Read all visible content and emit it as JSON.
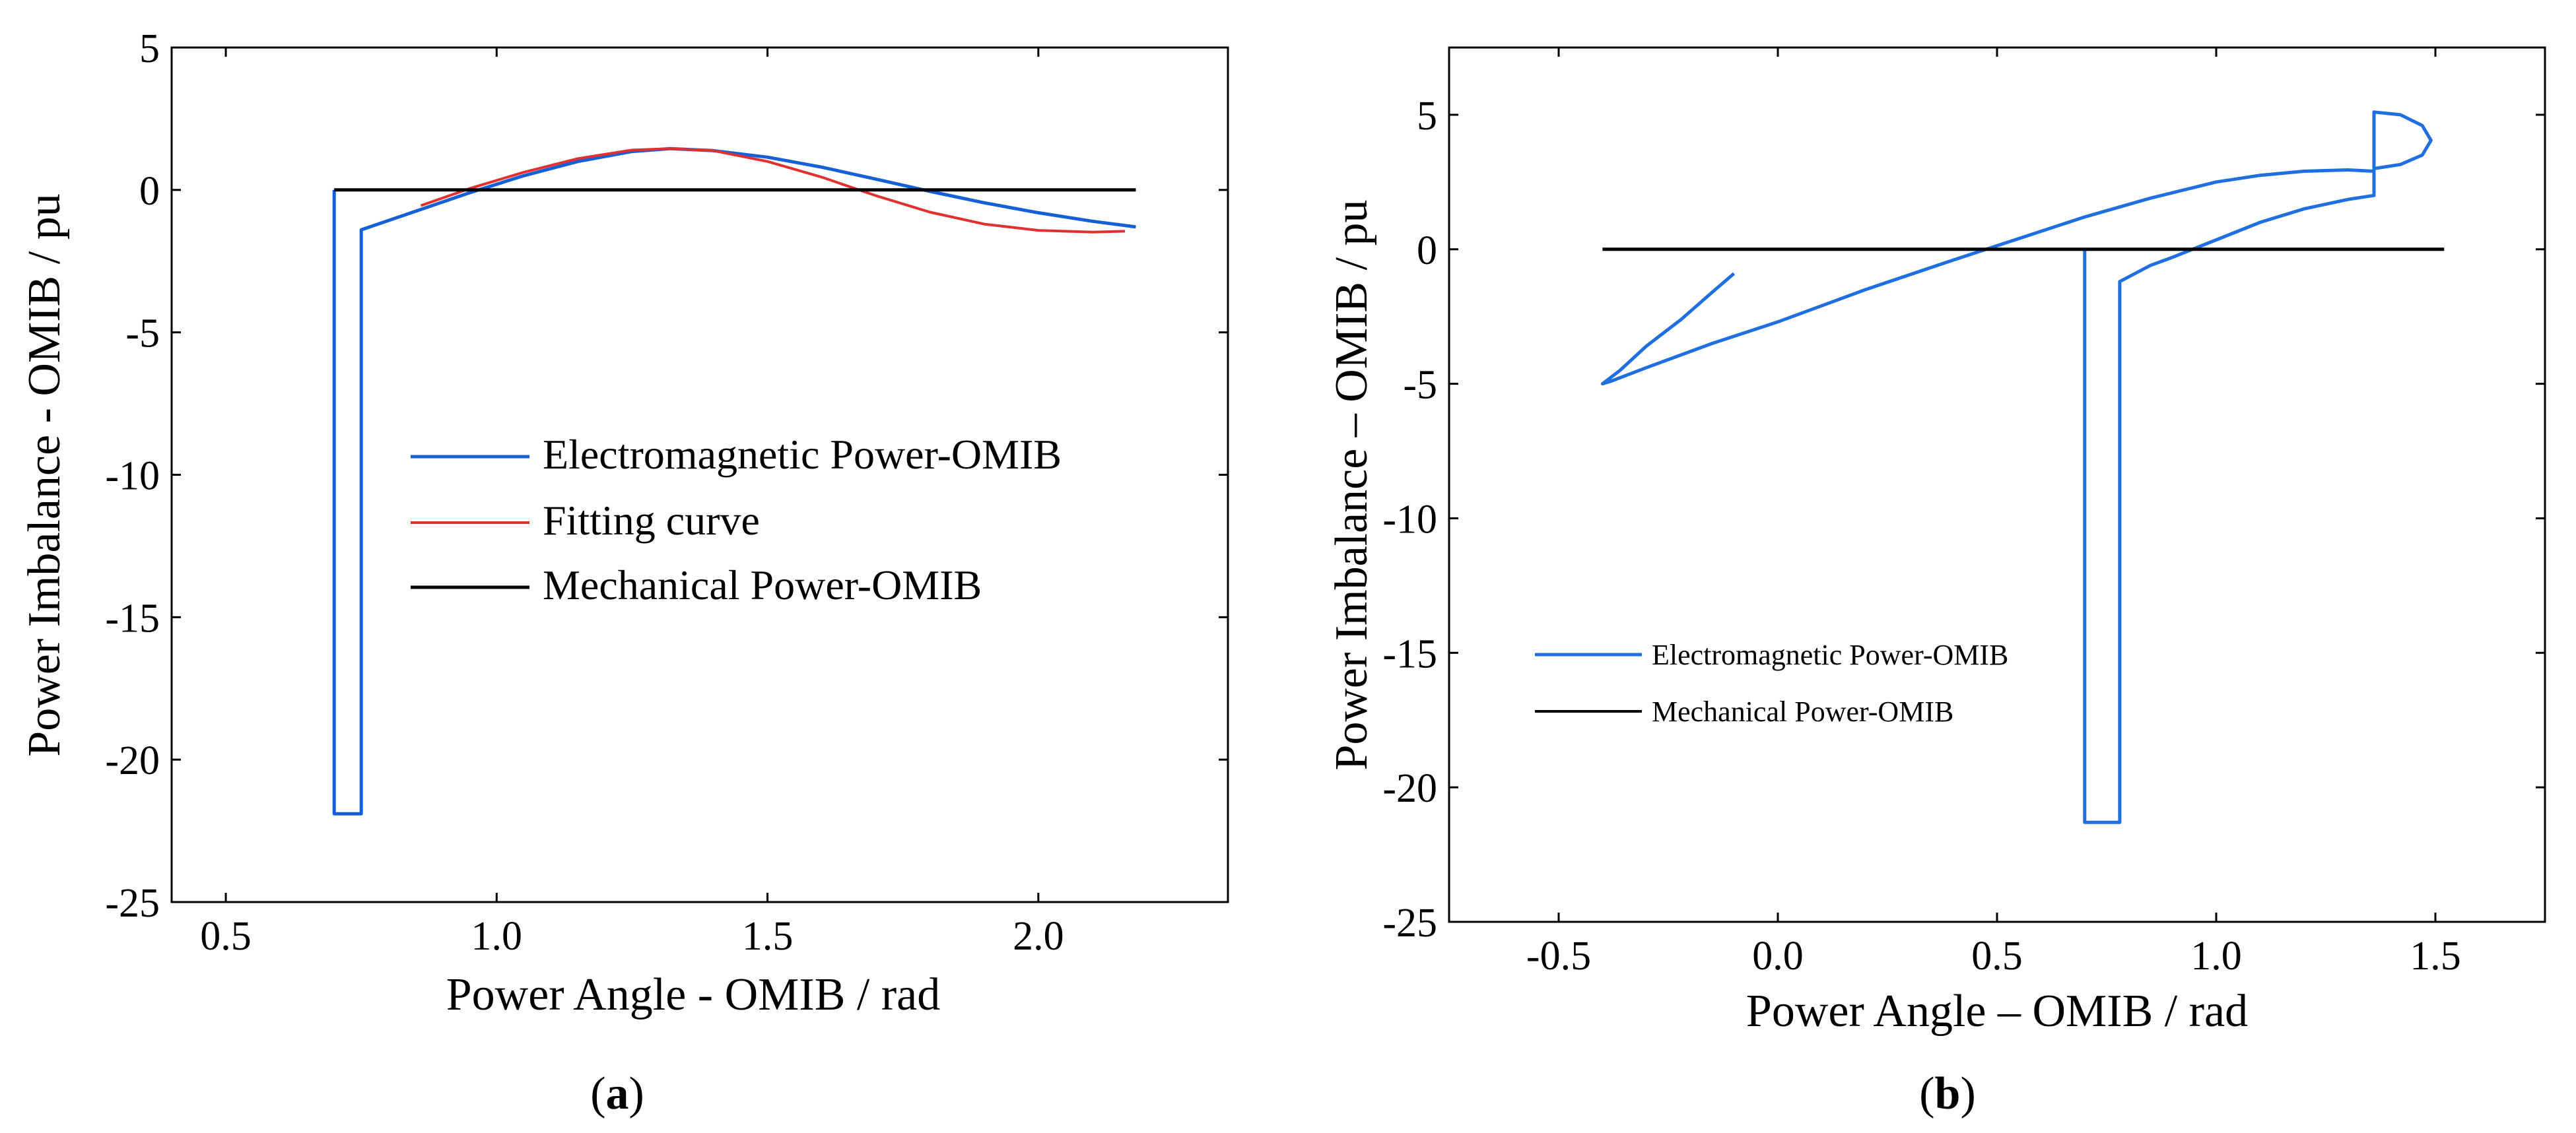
{
  "chart_data": [
    {
      "type": "line",
      "panel_label": "(a)",
      "panel_letter": "a",
      "xlabel": "Power Angle - OMIB / rad",
      "ylabel": "Power Imbalance - OMIB / pu",
      "xlim": [
        0.4,
        2.35
      ],
      "ylim": [
        -25,
        5
      ],
      "xticks": [
        0.5,
        1.0,
        1.5,
        2.0
      ],
      "xtick_labels": [
        "0.5",
        "1.0",
        "1.5",
        "2.0"
      ],
      "yticks": [
        5,
        0,
        -5,
        -10,
        -15,
        -20,
        -25
      ],
      "ytick_labels": [
        "5",
        "0",
        "-5",
        "-10",
        "-15",
        "-20",
        "-25"
      ],
      "grid": false,
      "legend_position": "center-right",
      "series": [
        {
          "name": "Electromagnetic Power-OMIB",
          "color": "#1560d6",
          "x": [
            0.7,
            0.7,
            0.75,
            0.75,
            0.85,
            0.95,
            1.05,
            1.15,
            1.25,
            1.32,
            1.4,
            1.5,
            1.6,
            1.7,
            1.8,
            1.9,
            2.0,
            2.1,
            2.18
          ],
          "y": [
            0.0,
            -21.9,
            -21.9,
            -1.4,
            -0.75,
            -0.1,
            0.5,
            1.0,
            1.35,
            1.45,
            1.38,
            1.15,
            0.8,
            0.38,
            -0.05,
            -0.45,
            -0.8,
            -1.1,
            -1.3
          ]
        },
        {
          "name": "Fitting curve",
          "color": "#e03030",
          "x": [
            0.86,
            0.95,
            1.05,
            1.15,
            1.25,
            1.32,
            1.4,
            1.5,
            1.6,
            1.7,
            1.8,
            1.9,
            2.0,
            2.1,
            2.16
          ],
          "y": [
            -0.55,
            0.05,
            0.62,
            1.1,
            1.4,
            1.45,
            1.38,
            1.0,
            0.45,
            -0.2,
            -0.78,
            -1.2,
            -1.42,
            -1.48,
            -1.45
          ]
        },
        {
          "name": "Mechanical Power-OMIB",
          "color": "#000000",
          "x": [
            0.7,
            2.18
          ],
          "y": [
            0.0,
            0.0
          ]
        }
      ]
    },
    {
      "type": "line",
      "panel_label": "(b)",
      "panel_letter": "b",
      "xlabel": "Power Angle – OMIB / rad",
      "ylabel": "Power Imbalance – OMIB / pu",
      "xlim": [
        -0.75,
        1.75
      ],
      "ylim": [
        -25,
        7.5
      ],
      "xticks": [
        -0.5,
        0.0,
        0.5,
        1.0,
        1.5
      ],
      "xtick_labels": [
        "-0.5",
        "0.0",
        "0.5",
        "1.0",
        "1.5"
      ],
      "yticks": [
        5,
        0,
        -5,
        -10,
        -15,
        -20,
        -25
      ],
      "ytick_labels": [
        "5",
        "0",
        "-5",
        "-10",
        "-15",
        "-20",
        "-25"
      ],
      "grid": false,
      "legend_position": "lower-left",
      "series": [
        {
          "name": "Electromagnetic Power-OMIB",
          "color": "#1f6fe0",
          "x": [
            -0.1,
            -0.15,
            -0.22,
            -0.3,
            -0.36,
            -0.4,
            -0.38,
            -0.3,
            -0.15,
            0.0,
            0.2,
            0.4,
            0.55,
            0.7,
            0.85,
            1.0,
            1.1,
            1.2,
            1.3,
            1.36,
            1.36,
            1.36,
            1.42,
            1.47,
            1.49,
            1.47,
            1.42,
            1.36,
            1.36,
            1.3,
            1.2,
            1.1,
            1.0,
            0.9,
            0.85,
            0.78,
            0.78,
            0.7,
            0.7
          ],
          "y": [
            -0.9,
            -1.6,
            -2.6,
            -3.6,
            -4.5,
            -5.0,
            -4.9,
            -4.4,
            -3.5,
            -2.7,
            -1.5,
            -0.4,
            0.4,
            1.2,
            1.9,
            2.5,
            2.75,
            2.9,
            2.95,
            2.9,
            4.7,
            5.1,
            5.0,
            4.6,
            4.05,
            3.5,
            3.15,
            3.0,
            2.0,
            1.85,
            1.5,
            1.0,
            0.35,
            -0.3,
            -0.6,
            -1.2,
            -21.3,
            -21.3,
            0.0
          ]
        },
        {
          "name": "Mechanical Power-OMIB",
          "color": "#000000",
          "x": [
            -0.4,
            1.52
          ],
          "y": [
            0.0,
            0.0
          ]
        }
      ]
    }
  ]
}
